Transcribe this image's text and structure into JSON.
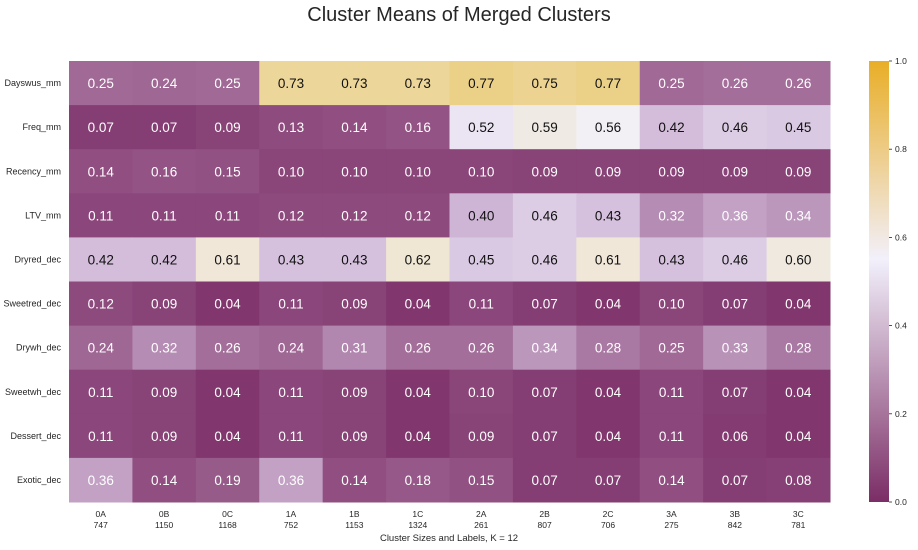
{
  "chart_data": {
    "type": "heatmap",
    "title": "Cluster Means of Merged Clusters",
    "xlabel": "Cluster Sizes and Labels, K = 12",
    "ylabel": "",
    "rows": [
      "Dayswus_mm",
      "Freq_mm",
      "Recency_mm",
      "LTV_mm",
      "Dryred_dec",
      "Sweetred_dec",
      "Drywh_dec",
      "Sweetwh_dec",
      "Dessert_dec",
      "Exotic_dec"
    ],
    "columns": [
      {
        "label": "0A",
        "size": "747"
      },
      {
        "label": "0B",
        "size": "1150"
      },
      {
        "label": "0C",
        "size": "1168"
      },
      {
        "label": "1A",
        "size": "752"
      },
      {
        "label": "1B",
        "size": "1153"
      },
      {
        "label": "1C",
        "size": "1324"
      },
      {
        "label": "2A",
        "size": "261"
      },
      {
        "label": "2B",
        "size": "807"
      },
      {
        "label": "2C",
        "size": "706"
      },
      {
        "label": "3A",
        "size": "275"
      },
      {
        "label": "3B",
        "size": "842"
      },
      {
        "label": "3C",
        "size": "781"
      }
    ],
    "values": [
      [
        0.25,
        0.24,
        0.25,
        0.73,
        0.73,
        0.73,
        0.77,
        0.75,
        0.77,
        0.25,
        0.26,
        0.26
      ],
      [
        0.07,
        0.07,
        0.09,
        0.13,
        0.14,
        0.16,
        0.52,
        0.59,
        0.56,
        0.42,
        0.46,
        0.45
      ],
      [
        0.14,
        0.16,
        0.15,
        0.1,
        0.1,
        0.1,
        0.1,
        0.09,
        0.09,
        0.09,
        0.09,
        0.09
      ],
      [
        0.11,
        0.11,
        0.11,
        0.12,
        0.12,
        0.12,
        0.4,
        0.46,
        0.43,
        0.32,
        0.36,
        0.34
      ],
      [
        0.42,
        0.42,
        0.61,
        0.43,
        0.43,
        0.62,
        0.45,
        0.46,
        0.61,
        0.43,
        0.46,
        0.6
      ],
      [
        0.12,
        0.09,
        0.04,
        0.11,
        0.09,
        0.04,
        0.11,
        0.07,
        0.04,
        0.1,
        0.07,
        0.04
      ],
      [
        0.24,
        0.32,
        0.26,
        0.24,
        0.31,
        0.26,
        0.26,
        0.34,
        0.28,
        0.25,
        0.33,
        0.28
      ],
      [
        0.11,
        0.09,
        0.04,
        0.11,
        0.09,
        0.04,
        0.1,
        0.07,
        0.04,
        0.11,
        0.07,
        0.04
      ],
      [
        0.11,
        0.09,
        0.04,
        0.11,
        0.09,
        0.04,
        0.09,
        0.07,
        0.04,
        0.11,
        0.06,
        0.04
      ],
      [
        0.36,
        0.14,
        0.19,
        0.36,
        0.14,
        0.18,
        0.15,
        0.07,
        0.07,
        0.14,
        0.07,
        0.08
      ]
    ],
    "colorbar": {
      "range": [
        0,
        1
      ],
      "ticks": [
        "0.0",
        "0.2",
        "0.4",
        "0.6",
        "0.8",
        "1.0"
      ],
      "colors": {
        "low": "#7b2d65",
        "mid": "#f2f0fb",
        "high": "#e9ae27"
      }
    }
  }
}
